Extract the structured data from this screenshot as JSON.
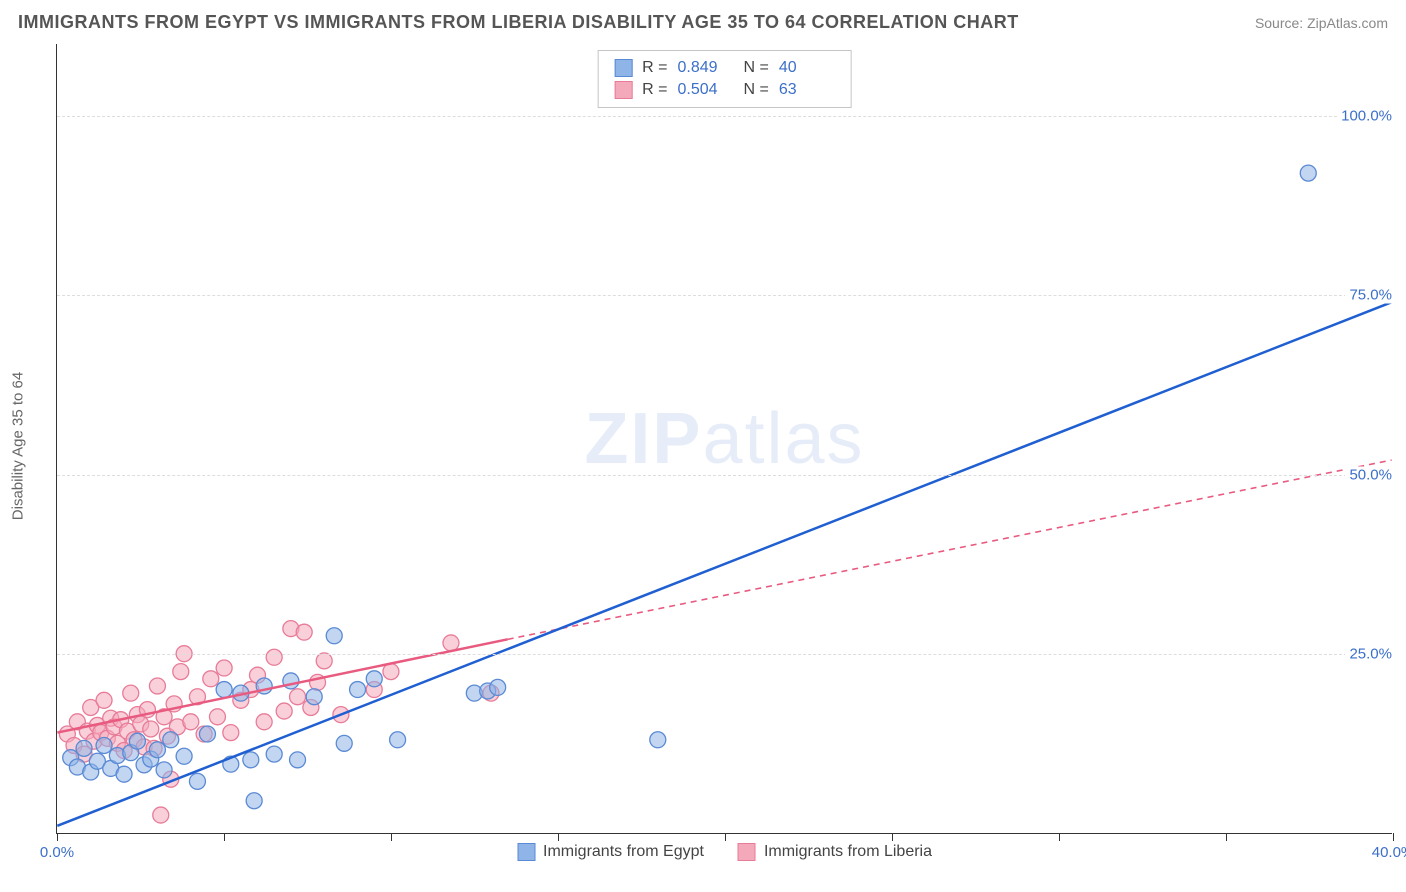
{
  "header": {
    "title": "IMMIGRANTS FROM EGYPT VS IMMIGRANTS FROM LIBERIA DISABILITY AGE 35 TO 64 CORRELATION CHART",
    "source": "Source: ZipAtlas.com"
  },
  "chart": {
    "type": "scatter",
    "ylabel": "Disability Age 35 to 64",
    "watermark_a": "ZIP",
    "watermark_b": "atlas",
    "xlim": [
      0,
      40
    ],
    "ylim": [
      0,
      110
    ],
    "xticks": [
      0,
      5,
      10,
      15,
      20,
      25,
      30,
      35,
      40
    ],
    "xtick_labels": {
      "0": "0.0%",
      "40": "40.0%"
    },
    "yticks": [
      25,
      50,
      75,
      100
    ],
    "ytick_labels": {
      "25": "25.0%",
      "50": "50.0%",
      "75": "75.0%",
      "100": "100.0%"
    },
    "background_color": "#ffffff",
    "grid_color": "#dddddd",
    "marker_radius": 8,
    "marker_opacity": 0.55,
    "series": {
      "egypt": {
        "label": "Immigrants from Egypt",
        "fill": "#8fb4e8",
        "stroke": "#5a8ad4",
        "line_color": "#1f5fd1",
        "line_width": 2.5,
        "line_dash": "none",
        "R_label": "R =",
        "R": "0.849",
        "N_label": "N =",
        "N": "40",
        "trend": {
          "x1": 0,
          "y1": 1,
          "x2": 40,
          "y2": 74
        },
        "points": [
          [
            0.4,
            10.5
          ],
          [
            0.6,
            9.2
          ],
          [
            0.8,
            11.8
          ],
          [
            1.0,
            8.5
          ],
          [
            1.2,
            10.0
          ],
          [
            1.4,
            12.2
          ],
          [
            1.6,
            9.0
          ],
          [
            1.8,
            10.8
          ],
          [
            2.0,
            8.2
          ],
          [
            2.2,
            11.2
          ],
          [
            2.4,
            12.8
          ],
          [
            2.6,
            9.5
          ],
          [
            2.8,
            10.3
          ],
          [
            3.0,
            11.6
          ],
          [
            3.2,
            8.8
          ],
          [
            3.4,
            13.0
          ],
          [
            3.8,
            10.7
          ],
          [
            4.2,
            7.2
          ],
          [
            4.5,
            13.8
          ],
          [
            5.0,
            20.0
          ],
          [
            5.2,
            9.6
          ],
          [
            5.5,
            19.5
          ],
          [
            5.8,
            10.2
          ],
          [
            5.9,
            4.5
          ],
          [
            6.2,
            20.5
          ],
          [
            6.5,
            11.0
          ],
          [
            7.0,
            21.2
          ],
          [
            7.2,
            10.2
          ],
          [
            7.7,
            19.0
          ],
          [
            8.3,
            27.5
          ],
          [
            8.6,
            12.5
          ],
          [
            9.0,
            20.0
          ],
          [
            9.5,
            21.5
          ],
          [
            10.2,
            13.0
          ],
          [
            12.5,
            19.5
          ],
          [
            12.9,
            19.8
          ],
          [
            13.2,
            20.3
          ],
          [
            18.0,
            13.0
          ],
          [
            37.5,
            92.0
          ]
        ]
      },
      "liberia": {
        "label": "Immigrants from Liberia",
        "fill": "#f4a9bb",
        "stroke": "#e87b98",
        "line_color": "#e85a7f",
        "line_width": 2.5,
        "line_dash_ext": "6,5",
        "R_label": "R =",
        "R": "0.504",
        "N_label": "N =",
        "N": "63",
        "trend_solid": {
          "x1": 0,
          "y1": 14,
          "x2": 13.5,
          "y2": 27
        },
        "trend_dash": {
          "x1": 13.5,
          "y1": 27,
          "x2": 40,
          "y2": 52
        },
        "points": [
          [
            0.3,
            13.8
          ],
          [
            0.5,
            12.2
          ],
          [
            0.6,
            15.5
          ],
          [
            0.8,
            11.0
          ],
          [
            0.9,
            14.2
          ],
          [
            1.0,
            17.5
          ],
          [
            1.1,
            12.8
          ],
          [
            1.2,
            15.0
          ],
          [
            1.3,
            14.0
          ],
          [
            1.4,
            18.5
          ],
          [
            1.5,
            13.2
          ],
          [
            1.6,
            16.0
          ],
          [
            1.7,
            14.8
          ],
          [
            1.8,
            12.5
          ],
          [
            1.9,
            15.8
          ],
          [
            2.0,
            11.5
          ],
          [
            2.1,
            14.2
          ],
          [
            2.2,
            19.5
          ],
          [
            2.3,
            13.0
          ],
          [
            2.4,
            16.5
          ],
          [
            2.5,
            15.2
          ],
          [
            2.6,
            12.0
          ],
          [
            2.7,
            17.2
          ],
          [
            2.8,
            14.5
          ],
          [
            2.9,
            11.8
          ],
          [
            3.0,
            20.5
          ],
          [
            3.1,
            2.5
          ],
          [
            3.2,
            16.2
          ],
          [
            3.3,
            13.5
          ],
          [
            3.4,
            7.5
          ],
          [
            3.5,
            18.0
          ],
          [
            3.6,
            14.8
          ],
          [
            3.7,
            22.5
          ],
          [
            3.8,
            25.0
          ],
          [
            4.0,
            15.5
          ],
          [
            4.2,
            19.0
          ],
          [
            4.4,
            13.8
          ],
          [
            4.6,
            21.5
          ],
          [
            4.8,
            16.2
          ],
          [
            5.0,
            23.0
          ],
          [
            5.2,
            14.0
          ],
          [
            5.5,
            18.5
          ],
          [
            5.8,
            20.0
          ],
          [
            6.0,
            22.0
          ],
          [
            6.2,
            15.5
          ],
          [
            6.5,
            24.5
          ],
          [
            6.8,
            17.0
          ],
          [
            7.0,
            28.5
          ],
          [
            7.2,
            19.0
          ],
          [
            7.4,
            28.0
          ],
          [
            7.6,
            17.5
          ],
          [
            7.8,
            21.0
          ],
          [
            8.0,
            24.0
          ],
          [
            8.5,
            16.5
          ],
          [
            9.5,
            20.0
          ],
          [
            10.0,
            22.5
          ],
          [
            11.8,
            26.5
          ],
          [
            13.0,
            19.5
          ]
        ]
      }
    }
  }
}
